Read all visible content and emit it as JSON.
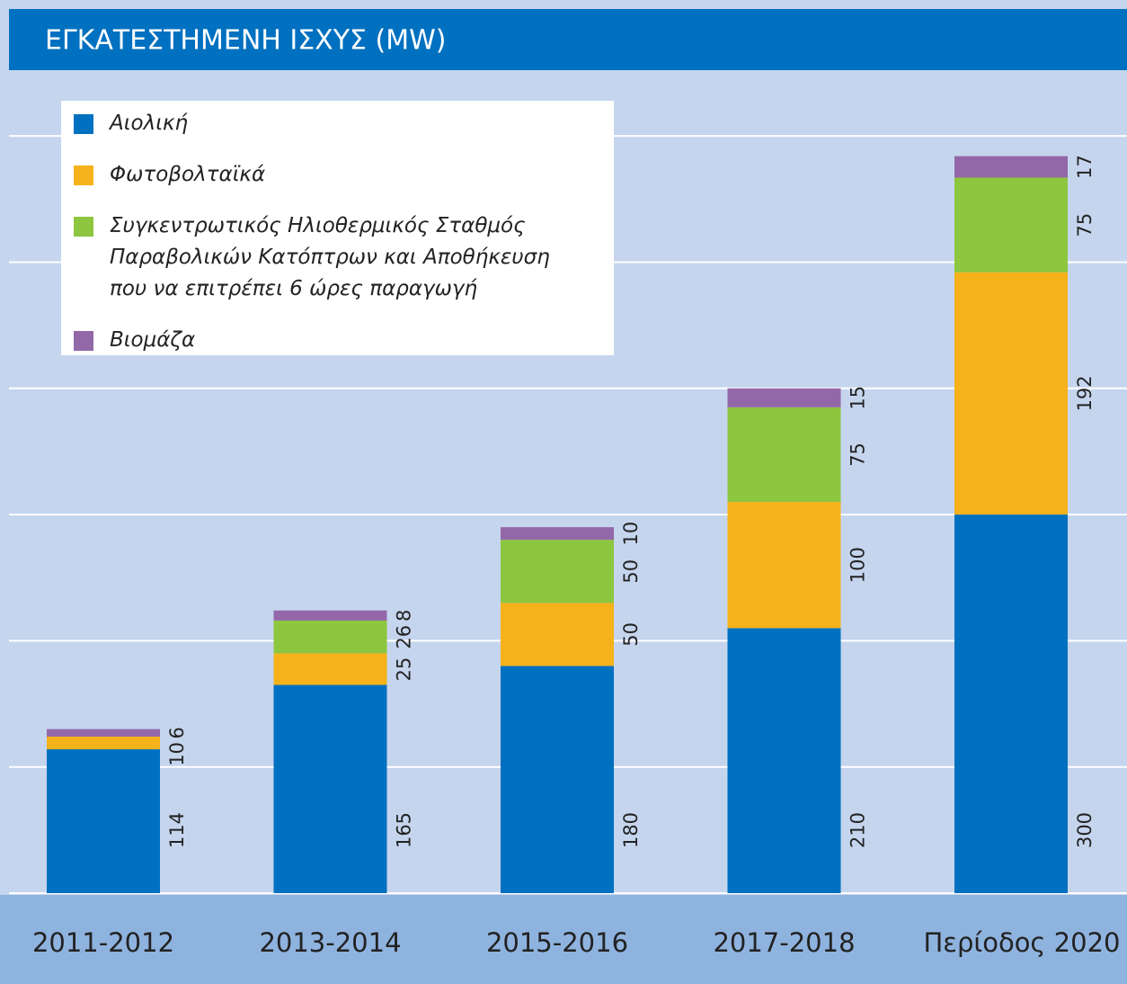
{
  "chart_data": {
    "type": "stacked_bar",
    "title": "ΕΓΚΑΤΕΣΤΗΜΕΝΗ ΙΣΧΥΣ (MW)",
    "categories": [
      "2011-2012",
      "2013-2014",
      "2015-2016",
      "2017-2018",
      "Περίοδος 2020"
    ],
    "series": [
      {
        "name": "Αιολική",
        "color": "#0070c0",
        "values": [
          114,
          165,
          180,
          210,
          300
        ]
      },
      {
        "name": "Φωτοβολταϊκά",
        "color": "#f5b21a",
        "values": [
          10,
          25,
          50,
          100,
          192
        ]
      },
      {
        "name": "Συγκεντρωτικός Ηλιοθερμικός Σταθμός\nΠαραβολικών Κατόπτρων και Αποθήκευση\nπου να επιτρέπει 6 ώρες παραγωγή",
        "color": "#8dc63f",
        "values": [
          null,
          26,
          50,
          75,
          75
        ]
      },
      {
        "name": "Βιομάζα",
        "color": "#9368a8",
        "values": [
          6,
          8,
          10,
          15,
          17
        ]
      }
    ],
    "ylim": [
      0,
      650
    ],
    "yticks": [
      0,
      100,
      200,
      300,
      400,
      500,
      600
    ],
    "grid": true,
    "legend": "top-left"
  }
}
